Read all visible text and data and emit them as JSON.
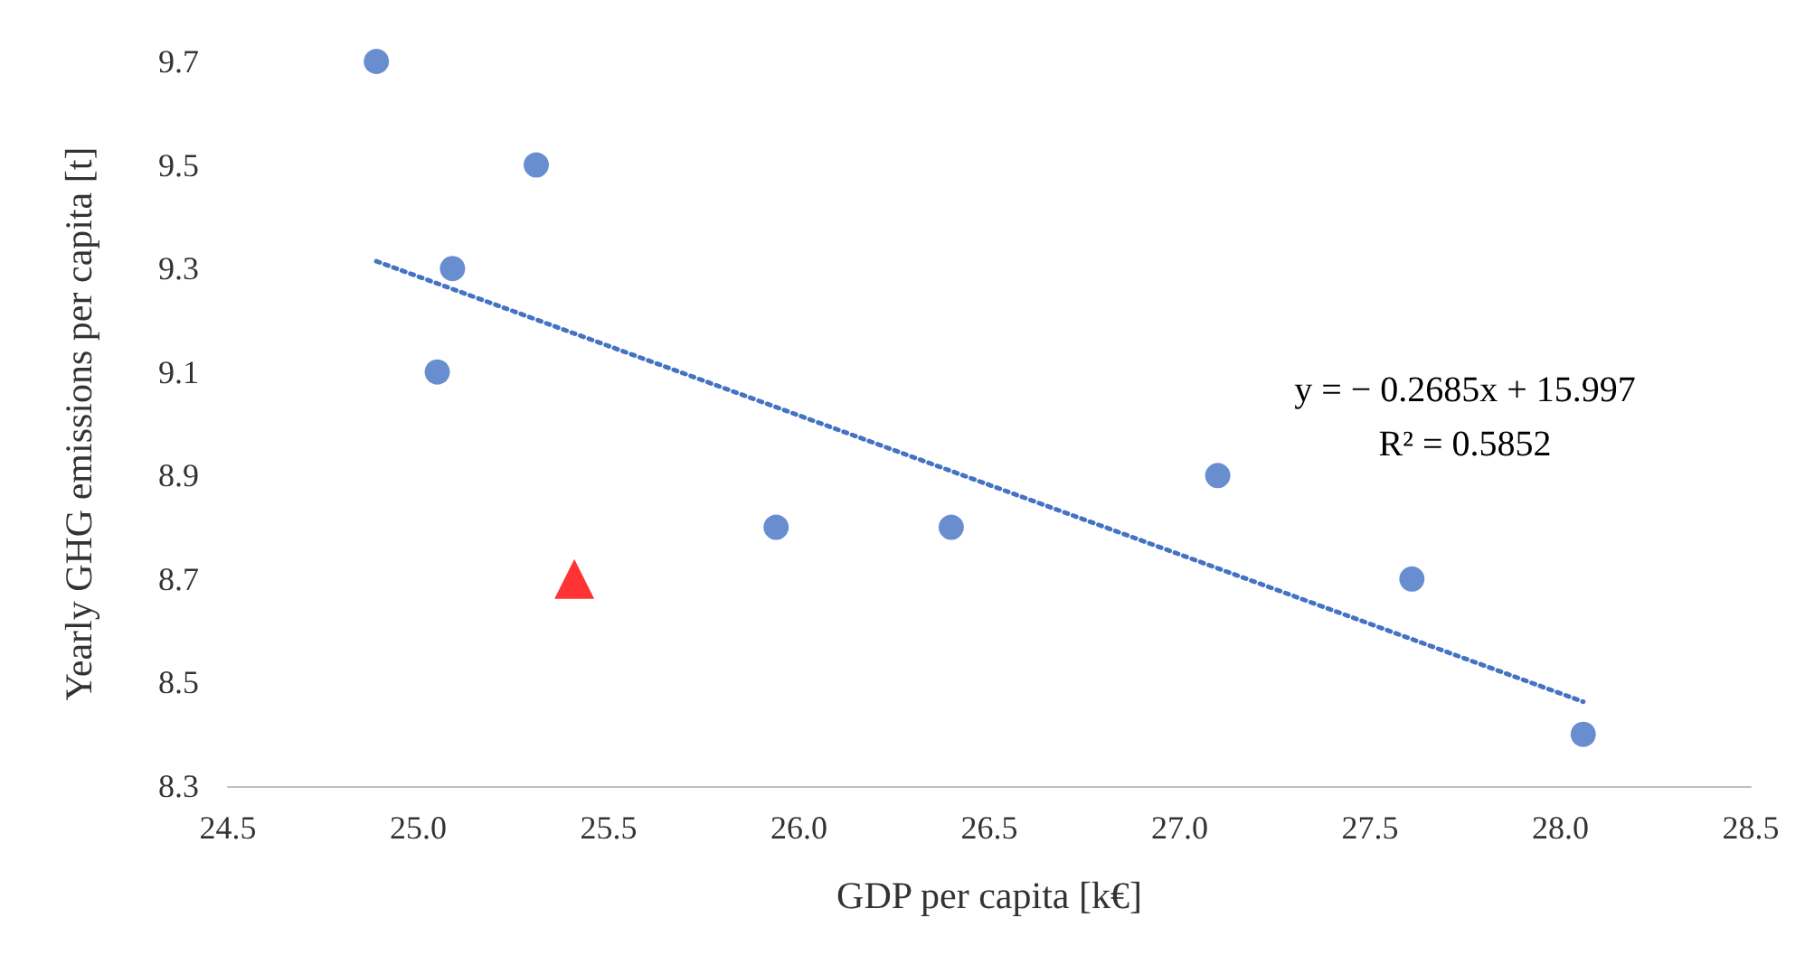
{
  "chart_data": {
    "type": "scatter",
    "xlabel": "GDP per capita [k€]",
    "ylabel": "Yearly GHG emissions per capita [t]",
    "series": [
      {
        "marker": "circle",
        "color": "#4472c4",
        "x": [
          24.89,
          25.31,
          25.09,
          25.05,
          25.94,
          26.4,
          27.1,
          27.61,
          28.06
        ],
        "values": [
          9.7,
          9.5,
          9.3,
          9.1,
          8.8,
          8.8,
          8.9,
          8.7,
          8.4
        ]
      },
      {
        "marker": "triangle",
        "color": "#ff0000",
        "x": [
          25.41
        ],
        "values": [
          8.7
        ]
      },
      {
        "type": "line",
        "marker": "none",
        "line_style": "dotted",
        "color": "#4472c4",
        "x": [
          24.89,
          28.06
        ],
        "values": [
          9.314,
          8.463
        ]
      }
    ],
    "annotations": [
      "y = − 0.2685x + 15.997",
      "R² = 0.5852"
    ],
    "xlim": [
      24.5,
      28.5
    ],
    "xticks": [
      {
        "value": 24.5,
        "label": "24.5"
      },
      {
        "value": 25,
        "label": "25.0"
      },
      {
        "value": 25.5,
        "label": "25.5"
      },
      {
        "value": 26,
        "label": "26.0"
      },
      {
        "value": 26.5,
        "label": "26.5"
      },
      {
        "value": 27,
        "label": "27.0"
      },
      {
        "value": 27.5,
        "label": "27.5"
      },
      {
        "value": 28,
        "label": "28.0"
      },
      {
        "value": 28.5,
        "label": "28.5"
      }
    ],
    "ylim": [
      8.3,
      9.7
    ],
    "yticks": [
      8.3,
      8.5,
      8.7,
      8.9,
      9.1,
      9.3,
      9.5,
      9.7
    ],
    "grid": false
  }
}
